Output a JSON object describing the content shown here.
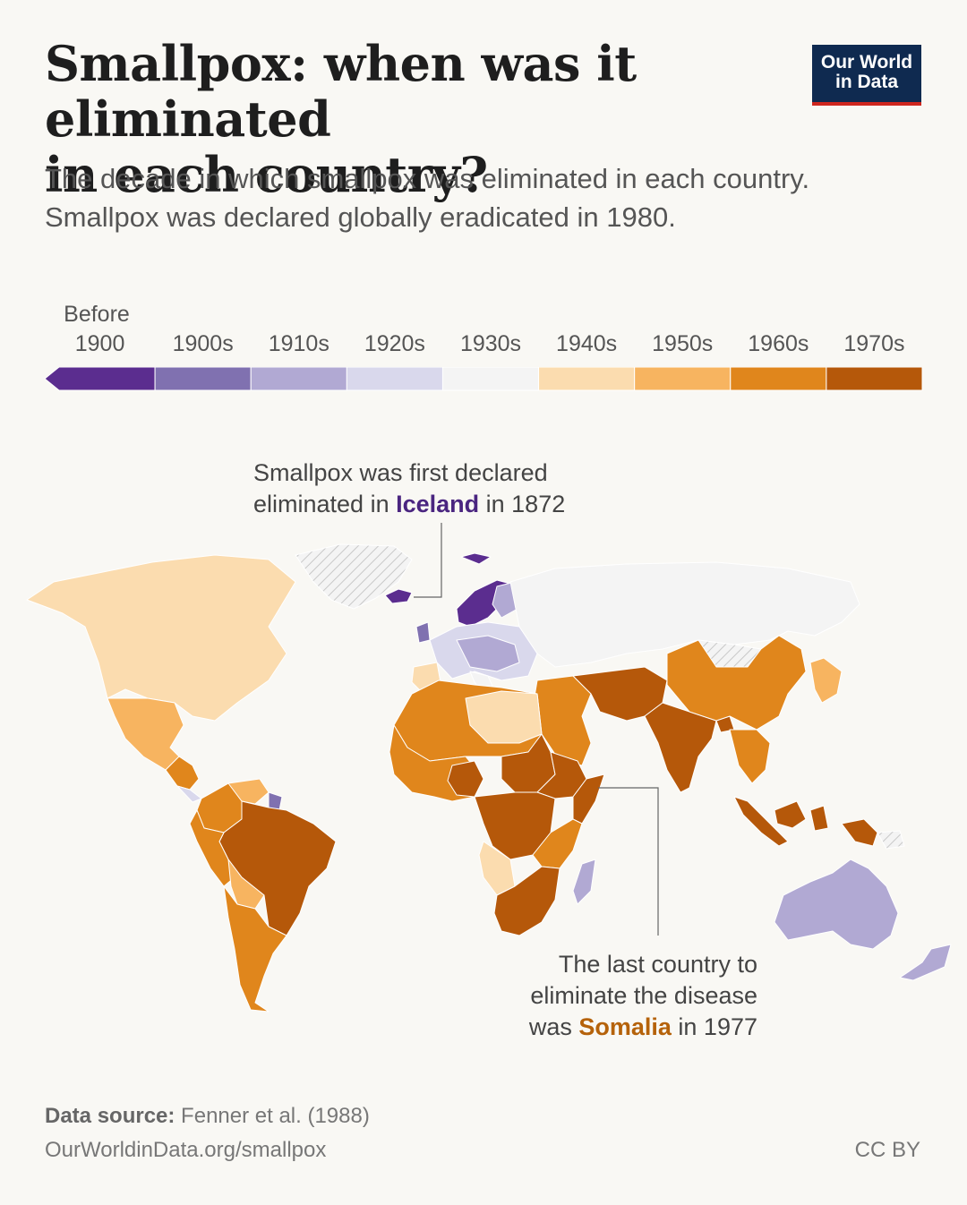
{
  "header": {
    "title_line1": "Smallpox: when was it eliminated",
    "title_line2": "in each country?",
    "subtitle_line1": "The decade in which smallpox was eliminated in each country.",
    "subtitle_line2": "Smallpox was declared globally eradicated in 1980.",
    "logo_line1": "Our World",
    "logo_line2": "in Data"
  },
  "legend": {
    "before_label": "Before",
    "bins": [
      {
        "label": "1900",
        "color": "#5b2d8f"
      },
      {
        "label": "1900s",
        "color": "#8071b0"
      },
      {
        "label": "1910s",
        "color": "#b1a9d3"
      },
      {
        "label": "1920s",
        "color": "#d9d8ec"
      },
      {
        "label": "1930s",
        "color": "#f4f4f4"
      },
      {
        "label": "1940s",
        "color": "#fbdcaf"
      },
      {
        "label": "1950s",
        "color": "#f7b460"
      },
      {
        "label": "1960s",
        "color": "#e0861c"
      },
      {
        "label": "1970s",
        "color": "#b5580a"
      }
    ]
  },
  "map_data": {
    "countries": [
      {
        "name": "Iceland",
        "year": 1872,
        "bin": "Before 1900"
      },
      {
        "name": "Somalia",
        "year": 1977,
        "bin": "1970s"
      }
    ]
  },
  "annotations": {
    "iceland_line1": "Smallpox was first declared",
    "iceland_pre": "eliminated in ",
    "iceland_country": "Iceland",
    "iceland_post": " in 1872",
    "somalia_line1": "The last country to",
    "somalia_line2": "eliminate the disease",
    "somalia_pre": "was ",
    "somalia_country": "Somalia",
    "somalia_post": " in 1977"
  },
  "footer": {
    "source_label": "Data source:",
    "source_value": " Fenner et al. (1988)",
    "url": "OurWorldinData.org/smallpox",
    "license": "CC BY"
  }
}
